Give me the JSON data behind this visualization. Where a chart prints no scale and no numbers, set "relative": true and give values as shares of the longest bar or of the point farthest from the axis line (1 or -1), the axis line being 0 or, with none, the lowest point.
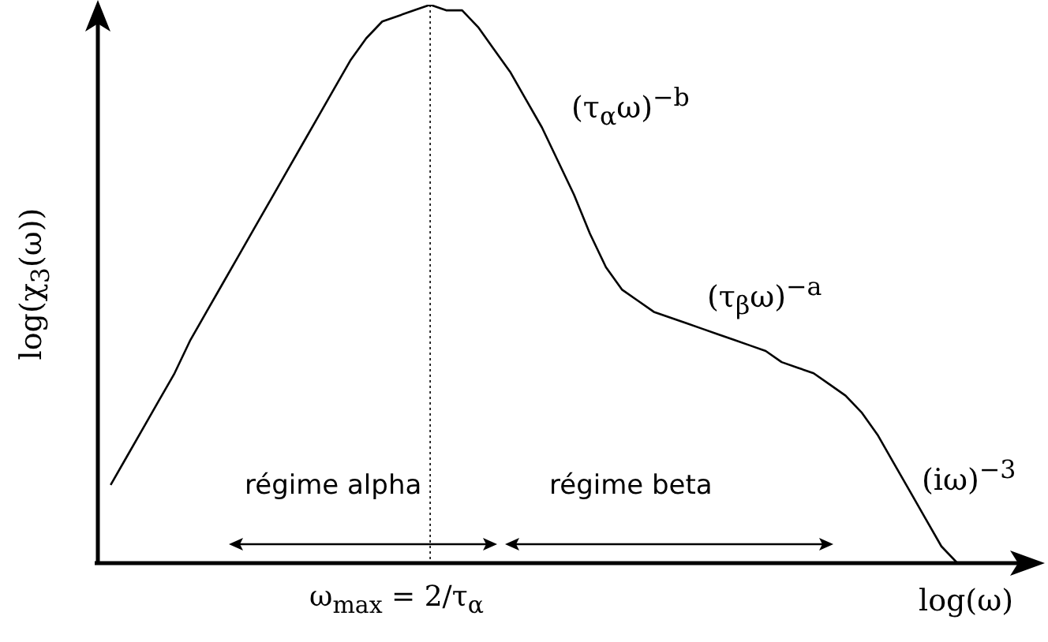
{
  "chart_data": {
    "type": "line",
    "relative": true,
    "marker": "none",
    "line_style": "solid",
    "legend": false,
    "ylabel": "log(χ$_{3}$(ω))",
    "xlabel": "log(ω)",
    "annotations": [
      "(τ$_{α}$ω)$^{−b}$",
      "(τ$_{β}$ω)$^{−a}$",
      "(iω)$^{−3}$",
      "régime alpha",
      "régime beta",
      "ω$_{max}$ = 2/τ$_{α}$"
    ],
    "categories": [
      null,
      null,
      null,
      null,
      null,
      null,
      null,
      null,
      null,
      null,
      null,
      null,
      null,
      null,
      null,
      null,
      null,
      null,
      null,
      null,
      null,
      null,
      null,
      null,
      null,
      null,
      null,
      null,
      null,
      null,
      null,
      null,
      null,
      null,
      null,
      null,
      null,
      null,
      null,
      null,
      null,
      null,
      null,
      null,
      null,
      null,
      null,
      null,
      null,
      null,
      null,
      null,
      null,
      null
    ],
    "series": [
      {
        "color": "#000000",
        "values": [
          0.14,
          0.19,
          0.24,
          0.29,
          0.34,
          0.4,
          0.45,
          0.5,
          0.55,
          0.6,
          0.65,
          0.7,
          0.75,
          0.8,
          0.85,
          0.9,
          0.94,
          0.97,
          0.98,
          0.99,
          1,
          0.99,
          0.99,
          0.96,
          0.92,
          0.88,
          0.83,
          0.78,
          0.72,
          0.66,
          0.59,
          0.53,
          0.49,
          0.47,
          0.45,
          0.44,
          0.43,
          0.42,
          0.41,
          0.4,
          0.39,
          0.38,
          0.36,
          0.35,
          0.34,
          0.32,
          0.3,
          0.27,
          0.23,
          0.18,
          0.13,
          0.08,
          0.03,
          0
        ]
      }
    ]
  }
}
